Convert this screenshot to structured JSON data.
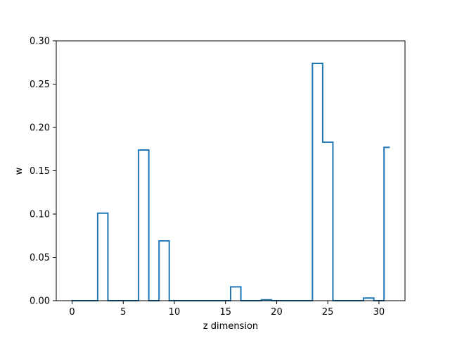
{
  "chart_data": {
    "type": "step",
    "title": "",
    "xlabel": "z dimension",
    "ylabel": "w",
    "xlim": [
      -1.55,
      32.55
    ],
    "ylim": [
      0,
      0.3
    ],
    "xticks": [
      0,
      5,
      10,
      15,
      20,
      25,
      30
    ],
    "xtick_labels": [
      "0",
      "5",
      "10",
      "15",
      "20",
      "25",
      "30"
    ],
    "yticks": [
      0.0,
      0.05,
      0.1,
      0.15,
      0.2,
      0.25,
      0.3
    ],
    "ytick_labels": [
      "0.00",
      "0.05",
      "0.10",
      "0.15",
      "0.20",
      "0.25",
      "0.30"
    ],
    "grid": false,
    "step_where": "mid",
    "x": [
      0,
      1,
      2,
      3,
      4,
      5,
      6,
      7,
      8,
      9,
      10,
      11,
      12,
      13,
      14,
      15,
      16,
      17,
      18,
      19,
      20,
      21,
      22,
      23,
      24,
      25,
      26,
      27,
      28,
      29,
      30,
      31
    ],
    "values": [
      0,
      0,
      0,
      0.101,
      0,
      0,
      0,
      0.174,
      0,
      0.069,
      0,
      0,
      0,
      0,
      0,
      0,
      0.016,
      0,
      0,
      0.001,
      0,
      0,
      0,
      0,
      0.274,
      0.183,
      0,
      0,
      0,
      0.003,
      0,
      0.177
    ],
    "colors": {
      "line": "#1f77b4",
      "axes": "#000000"
    }
  }
}
